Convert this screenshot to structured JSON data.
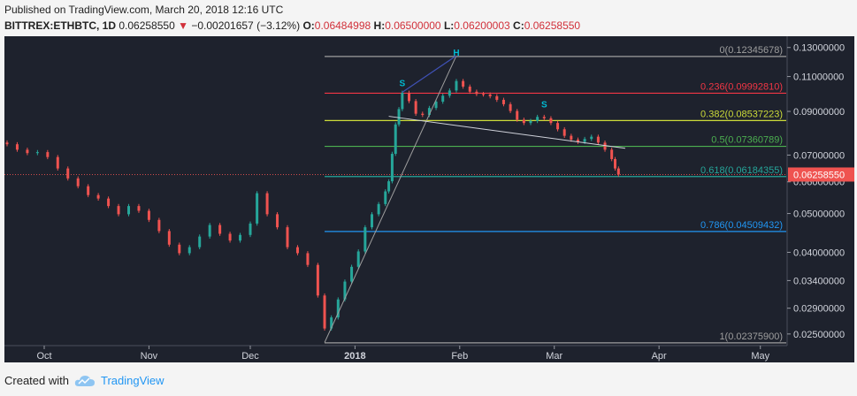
{
  "header": {
    "published": "Published on TradingView.com, March 20, 2018 12:16 UTC",
    "symbol": "BITTREX:ETHBTC, 1D",
    "last": "0.06258550",
    "change": "−0.00201657 (−3.12%)",
    "o_label": "O:",
    "o_value": "0.06484998",
    "h_label": "H:",
    "h_value": "0.06500000",
    "l_label": "L:",
    "l_value": "0.06200003",
    "c_label": "C:",
    "c_value": "0.06258550"
  },
  "footer": {
    "created_with": "Created with",
    "brand": "TradingView"
  },
  "colors": {
    "up": "#26a69a",
    "down": "#ef5350",
    "bg": "#1e222d",
    "price_tag": "#ef5350"
  },
  "chart_data": {
    "type": "candlestick",
    "y_scale": "log",
    "y_ticks": [
      0.13,
      0.11,
      0.09,
      0.07,
      0.06,
      0.05,
      0.04,
      0.034,
      0.029,
      0.025
    ],
    "y_tick_labels": [
      "0.13000000",
      "0.11000000",
      "0.09000000",
      "0.07000000",
      "0.06000000",
      "0.05000000",
      "0.04000000",
      "0.03400000",
      "0.02900000",
      "0.02500000"
    ],
    "x_tick_labels": [
      "Oct",
      "Nov",
      "Dec",
      "2018",
      "Feb",
      "Mar",
      "Apr",
      "May"
    ],
    "ylim": [
      0.0235,
      0.138
    ],
    "current_price_label": "0.06258550",
    "fib_levels": [
      {
        "label": "0(0.12345678)",
        "value": 0.12345678,
        "color": "#9e9e9e"
      },
      {
        "label": "0.236(0.09992810)",
        "value": 0.0999281,
        "color": "#f23645"
      },
      {
        "label": "0.382(0.08537223)",
        "value": 0.08537223,
        "color": "#cddc39"
      },
      {
        "label": "0.5(0.07360789)",
        "value": 0.07360789,
        "color": "#4caf50"
      },
      {
        "label": "0.618(0.06184355)",
        "value": 0.06184355,
        "color": "#26a69a"
      },
      {
        "label": "0.786(0.04509432)",
        "value": 0.04509432,
        "color": "#2196f3"
      },
      {
        "label": "1(0.02375900)",
        "value": 0.023759,
        "color": "#9e9e9e"
      }
    ],
    "annotations": [
      {
        "text": "S",
        "date": "2018-01-15",
        "value": 0.104
      },
      {
        "text": "H",
        "date": "2018-01-31",
        "value": 0.124
      },
      {
        "text": "S",
        "date": "2018-02-26",
        "value": 0.092
      }
    ],
    "closes": [
      [
        "2017-09-20",
        0.0745
      ],
      [
        "2017-09-23",
        0.0722
      ],
      [
        "2017-09-26",
        0.0708
      ],
      [
        "2017-09-29",
        0.0712
      ],
      [
        "2017-10-02",
        0.0692
      ],
      [
        "2017-10-05",
        0.0648
      ],
      [
        "2017-10-08",
        0.0612
      ],
      [
        "2017-10-11",
        0.0585
      ],
      [
        "2017-10-14",
        0.0556
      ],
      [
        "2017-10-17",
        0.0545
      ],
      [
        "2017-10-20",
        0.0522
      ],
      [
        "2017-10-23",
        0.0498
      ],
      [
        "2017-10-26",
        0.0522
      ],
      [
        "2017-10-29",
        0.0508
      ],
      [
        "2017-11-01",
        0.0482
      ],
      [
        "2017-11-04",
        0.0452
      ],
      [
        "2017-11-07",
        0.0418
      ],
      [
        "2017-11-10",
        0.0398
      ],
      [
        "2017-11-13",
        0.0412
      ],
      [
        "2017-11-16",
        0.0438
      ],
      [
        "2017-11-19",
        0.0468
      ],
      [
        "2017-11-22",
        0.0445
      ],
      [
        "2017-11-25",
        0.0428
      ],
      [
        "2017-11-28",
        0.0442
      ],
      [
        "2017-12-01",
        0.0472
      ],
      [
        "2017-12-03",
        0.0562
      ],
      [
        "2017-12-06",
        0.0498
      ],
      [
        "2017-12-09",
        0.0462
      ],
      [
        "2017-12-12",
        0.0412
      ],
      [
        "2017-12-15",
        0.0398
      ],
      [
        "2017-12-18",
        0.0372
      ],
      [
        "2017-12-21",
        0.0312
      ],
      [
        "2017-12-23",
        0.0258
      ],
      [
        "2017-12-25",
        0.0275
      ],
      [
        "2017-12-27",
        0.0305
      ],
      [
        "2017-12-29",
        0.0338
      ],
      [
        "2017-12-31",
        0.0368
      ],
      [
        "2018-01-02",
        0.0402
      ],
      [
        "2018-01-04",
        0.0462
      ],
      [
        "2018-01-06",
        0.0498
      ],
      [
        "2018-01-08",
        0.0528
      ],
      [
        "2018-01-10",
        0.0568
      ],
      [
        "2018-01-11",
        0.0602
      ],
      [
        "2018-01-12",
        0.0705
      ],
      [
        "2018-01-13",
        0.0835
      ],
      [
        "2018-01-14",
        0.0912
      ],
      [
        "2018-01-15",
        0.1002
      ],
      [
        "2018-01-17",
        0.0955
      ],
      [
        "2018-01-19",
        0.0888
      ],
      [
        "2018-01-21",
        0.0882
      ],
      [
        "2018-01-23",
        0.0918
      ],
      [
        "2018-01-25",
        0.0952
      ],
      [
        "2018-01-27",
        0.0985
      ],
      [
        "2018-01-29",
        0.1015
      ],
      [
        "2018-01-31",
        0.1072
      ],
      [
        "2018-02-02",
        0.1038
      ],
      [
        "2018-02-04",
        0.1008
      ],
      [
        "2018-02-06",
        0.0995
      ],
      [
        "2018-02-08",
        0.0992
      ],
      [
        "2018-02-10",
        0.0982
      ],
      [
        "2018-02-12",
        0.0962
      ],
      [
        "2018-02-14",
        0.0938
      ],
      [
        "2018-02-16",
        0.0902
      ],
      [
        "2018-02-18",
        0.0858
      ],
      [
        "2018-02-20",
        0.0842
      ],
      [
        "2018-02-22",
        0.0852
      ],
      [
        "2018-02-24",
        0.0872
      ],
      [
        "2018-02-26",
        0.0865
      ],
      [
        "2018-02-28",
        0.0842
      ],
      [
        "2018-03-02",
        0.0812
      ],
      [
        "2018-03-04",
        0.0782
      ],
      [
        "2018-03-06",
        0.0765
      ],
      [
        "2018-03-08",
        0.0755
      ],
      [
        "2018-03-10",
        0.0768
      ],
      [
        "2018-03-12",
        0.0778
      ],
      [
        "2018-03-14",
        0.0752
      ],
      [
        "2018-03-16",
        0.0722
      ],
      [
        "2018-03-18",
        0.0684
      ],
      [
        "2018-03-19",
        0.0648
      ],
      [
        "2018-03-20",
        0.06258
      ]
    ]
  }
}
